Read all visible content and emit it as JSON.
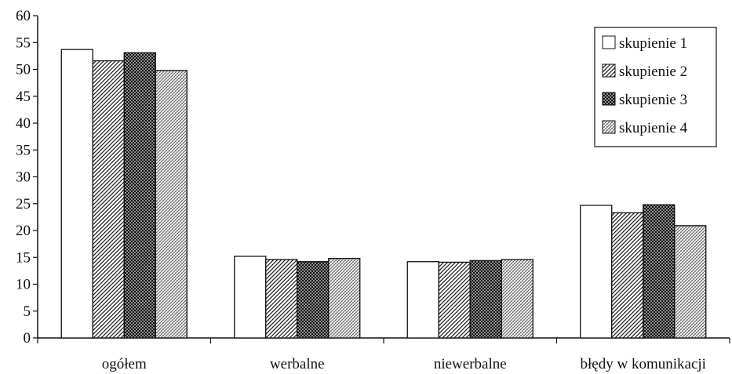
{
  "chart_data": {
    "type": "bar",
    "categories": [
      "ogółem",
      "werbalne",
      "niewerbalne",
      "błędy w komunikacji"
    ],
    "series": [
      {
        "name": "skupienie 1",
        "values": [
          53.7,
          15.2,
          14.2,
          24.7
        ],
        "pattern": "plain"
      },
      {
        "name": "skupienie 2",
        "values": [
          51.6,
          14.6,
          14.1,
          23.3
        ],
        "pattern": "diag-dense"
      },
      {
        "name": "skupienie 3",
        "values": [
          53.1,
          14.2,
          14.4,
          24.8
        ],
        "pattern": "crosshatch"
      },
      {
        "name": "skupienie 4",
        "values": [
          49.8,
          14.8,
          14.6,
          20.9
        ],
        "pattern": "dotted"
      }
    ],
    "ylim": [
      0,
      60
    ],
    "ytick_step": 5,
    "yticks": [
      "0",
      "5",
      "10",
      "15",
      "20",
      "25",
      "30",
      "35",
      "40",
      "45",
      "50",
      "55",
      "60"
    ],
    "grid": false,
    "legend": "top-right",
    "colors": {
      "axis": "#111111",
      "bar_fill": "#ffffff",
      "hatch": "#222222"
    }
  }
}
